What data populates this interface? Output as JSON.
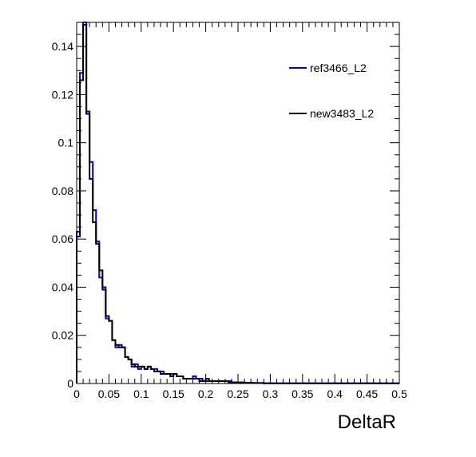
{
  "chart_data": {
    "type": "line",
    "xlabel": "DeltaR",
    "ylabel": "",
    "title": "",
    "xlim": [
      0,
      0.5
    ],
    "ylim": [
      0,
      0.15
    ],
    "x_ticks": [
      0,
      0.05,
      0.1,
      0.15,
      0.2,
      0.25,
      0.3,
      0.35,
      0.4,
      0.45,
      0.5
    ],
    "x_tick_labels": [
      "0",
      "0.05",
      "0.1",
      "0.15",
      "0.2",
      "0.25",
      "0.3",
      "0.35",
      "0.4",
      "0.45",
      "0.5"
    ],
    "y_ticks": [
      0,
      0.02,
      0.04,
      0.06,
      0.08,
      0.1,
      0.12,
      0.14
    ],
    "y_tick_labels": [
      "0",
      "0.02",
      "0.04",
      "0.06",
      "0.08",
      "0.1",
      "0.12",
      "0.14"
    ],
    "legend_position": "top-right",
    "bin_edges_start": 0,
    "bin_width": 0.005,
    "series": [
      {
        "name": "ref3466_L2",
        "color": "#0000cc",
        "values": [
          0.063,
          0.129,
          0.151,
          0.113,
          0.092,
          0.072,
          0.059,
          0.044,
          0.04,
          0.027,
          0.026,
          0.018,
          0.015,
          0.016,
          0.015,
          0.011,
          0.01,
          0.007,
          0.008,
          0.006,
          0.007,
          0.006,
          0.007,
          0.006,
          0.006,
          0.005,
          0.005,
          0.004,
          0.004,
          0.004,
          0.004,
          0.003,
          0.003,
          0.002,
          0.002,
          0.002,
          0.003,
          0.002,
          0.002,
          0.001,
          0.001,
          0.001,
          0.001,
          0.001,
          0.001,
          0.001,
          0.001,
          0.001,
          0.0005,
          0.0005,
          0.0005,
          0.0004,
          0.0003,
          0.0003,
          0.0003,
          0.0002,
          0.0002,
          0.0002,
          0.0001,
          0.0001,
          0.0001,
          0.0001,
          0.0001,
          0.0001,
          0.0001,
          0.0001,
          0.0001,
          0.0001,
          0.0001,
          0.0001,
          0.0001,
          0.0001,
          0.0001,
          0.0001,
          0.0001,
          0.0001,
          0.0001,
          0.0001,
          0.0001,
          0.0001,
          0.0001,
          0.0001,
          0.0001,
          0.0001,
          0.0001,
          0.0001,
          0.0001,
          0.0001,
          0.0001,
          0.0001,
          0.0001,
          0.0001,
          0.0001,
          0.0001,
          0.0001,
          0.0001,
          0.0001,
          0.0001,
          0.0001,
          0.0001
        ]
      },
      {
        "name": "new3483_L2",
        "color": "#000000",
        "values": [
          0.061,
          0.126,
          0.149,
          0.112,
          0.085,
          0.067,
          0.058,
          0.047,
          0.039,
          0.028,
          0.026,
          0.018,
          0.016,
          0.015,
          0.015,
          0.011,
          0.01,
          0.008,
          0.007,
          0.007,
          0.007,
          0.006,
          0.007,
          0.006,
          0.005,
          0.005,
          0.004,
          0.004,
          0.004,
          0.003,
          0.004,
          0.003,
          0.003,
          0.002,
          0.002,
          0.002,
          0.002,
          0.002,
          0.001,
          0.001,
          0.002,
          0.001,
          0.001,
          0.001,
          0.001,
          0.001,
          0.001,
          0.0005,
          0.0005,
          0.0005,
          0.0004,
          0.0004,
          0.0003,
          0.0003,
          0.0002,
          0.0002,
          0.0002,
          0.0002,
          0.0001,
          0.0001,
          0.0001,
          0.0001,
          0.0001,
          0.0001,
          0.0001,
          0.0001,
          0.0001,
          0.0001,
          0.0001,
          0.0001,
          0.0001,
          0.0001,
          0.0001,
          0.0001,
          0.0001,
          0.0001,
          0.0001,
          0.0001,
          0.0001,
          0.0001,
          0.0001,
          0.0001,
          0.0001,
          0.0001,
          0.0001,
          0.0001,
          0.0001,
          0.0001,
          0.0001,
          0.0001,
          0.0001,
          0.0001,
          0.0001,
          0.0001,
          0.0001,
          0.0001,
          0.0001,
          0.0001,
          0.0001,
          0.0001
        ]
      }
    ]
  }
}
